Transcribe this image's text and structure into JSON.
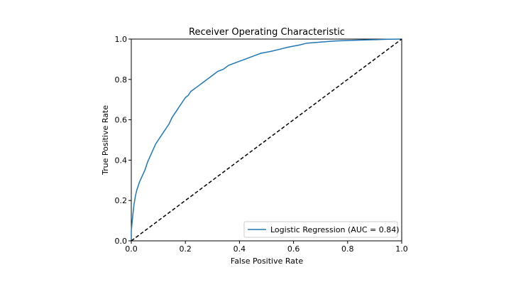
{
  "chart_data": {
    "type": "line",
    "title": "Receiver Operating Characteristic",
    "xlabel": "False Positive Rate",
    "ylabel": "True Positive Rate",
    "xlim": [
      0.0,
      1.0
    ],
    "ylim": [
      0.0,
      1.0
    ],
    "xticks": [
      "0.0",
      "0.2",
      "0.4",
      "0.6",
      "0.8",
      "1.0"
    ],
    "yticks": [
      "0.0",
      "0.2",
      "0.4",
      "0.6",
      "0.8",
      "1.0"
    ],
    "grid": false,
    "legend_position": "lower-right",
    "series": [
      {
        "name": "Logistic Regression (AUC = 0.84)",
        "color": "#1f77b4",
        "style": "solid",
        "x": [
          0.0,
          0.0,
          0.005,
          0.01,
          0.015,
          0.02,
          0.03,
          0.04,
          0.05,
          0.06,
          0.07,
          0.08,
          0.09,
          0.1,
          0.11,
          0.12,
          0.13,
          0.14,
          0.15,
          0.16,
          0.17,
          0.18,
          0.19,
          0.2,
          0.21,
          0.22,
          0.23,
          0.24,
          0.25,
          0.26,
          0.27,
          0.28,
          0.29,
          0.3,
          0.32,
          0.34,
          0.36,
          0.38,
          0.4,
          0.42,
          0.44,
          0.46,
          0.48,
          0.5,
          0.52,
          0.55,
          0.58,
          0.62,
          0.65,
          0.7,
          0.75,
          0.8,
          0.85,
          0.9,
          0.95,
          1.0
        ],
        "y": [
          0.0,
          0.05,
          0.12,
          0.18,
          0.22,
          0.25,
          0.29,
          0.32,
          0.35,
          0.39,
          0.42,
          0.45,
          0.48,
          0.5,
          0.52,
          0.54,
          0.56,
          0.58,
          0.61,
          0.63,
          0.65,
          0.67,
          0.69,
          0.71,
          0.72,
          0.74,
          0.75,
          0.76,
          0.77,
          0.78,
          0.79,
          0.8,
          0.81,
          0.82,
          0.84,
          0.85,
          0.87,
          0.88,
          0.89,
          0.9,
          0.91,
          0.92,
          0.93,
          0.935,
          0.94,
          0.95,
          0.96,
          0.97,
          0.98,
          0.985,
          0.99,
          0.993,
          0.995,
          0.997,
          0.999,
          1.0
        ]
      },
      {
        "name": "",
        "color": "#000000",
        "style": "dashed",
        "x": [
          0.0,
          1.0
        ],
        "y": [
          0.0,
          1.0
        ]
      }
    ]
  }
}
